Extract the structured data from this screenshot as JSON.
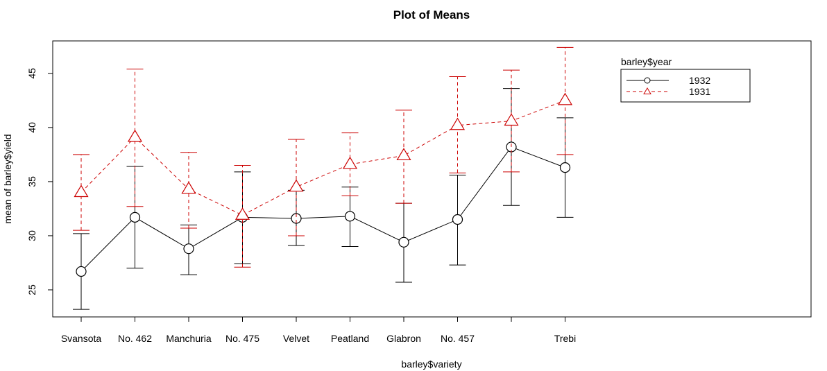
{
  "chart_data": {
    "type": "line",
    "title": "Plot of Means",
    "xlabel": "barley$variety",
    "ylabel": "mean of barley$yield",
    "categories": [
      "Svansota",
      "No. 462",
      "Manchuria",
      "No. 475",
      "Velvet",
      "Peatland",
      "Glabron",
      "No. 457",
      "",
      "Trebi"
    ],
    "ylim": [
      22.5,
      48
    ],
    "yticks": [
      25,
      30,
      35,
      40,
      45
    ],
    "legend": {
      "title": "barley$year",
      "position": "top-right"
    },
    "series": [
      {
        "name": "1932",
        "color": "#000000",
        "linestyle": "solid",
        "marker": "circle",
        "values": [
          26.7,
          31.7,
          28.8,
          31.7,
          31.6,
          31.8,
          29.4,
          31.5,
          38.2,
          36.3
        ],
        "err_low": [
          23.2,
          27.0,
          26.4,
          27.4,
          29.1,
          29.0,
          25.7,
          27.3,
          32.8,
          31.7
        ],
        "err_high": [
          30.2,
          36.4,
          31.0,
          35.9,
          34.2,
          34.5,
          33.0,
          35.6,
          43.6,
          40.9
        ]
      },
      {
        "name": "1931",
        "color": "#cc0000",
        "linestyle": "dashed",
        "marker": "triangle",
        "values": [
          34.0,
          39.1,
          34.3,
          31.9,
          34.5,
          36.6,
          37.4,
          40.2,
          40.6,
          42.5
        ],
        "err_low": [
          30.5,
          32.7,
          30.7,
          27.1,
          30.0,
          33.7,
          33.0,
          35.8,
          35.9,
          37.5
        ],
        "err_high": [
          37.5,
          45.4,
          37.7,
          36.5,
          38.9,
          39.5,
          41.6,
          44.7,
          45.3,
          47.4
        ]
      }
    ]
  }
}
